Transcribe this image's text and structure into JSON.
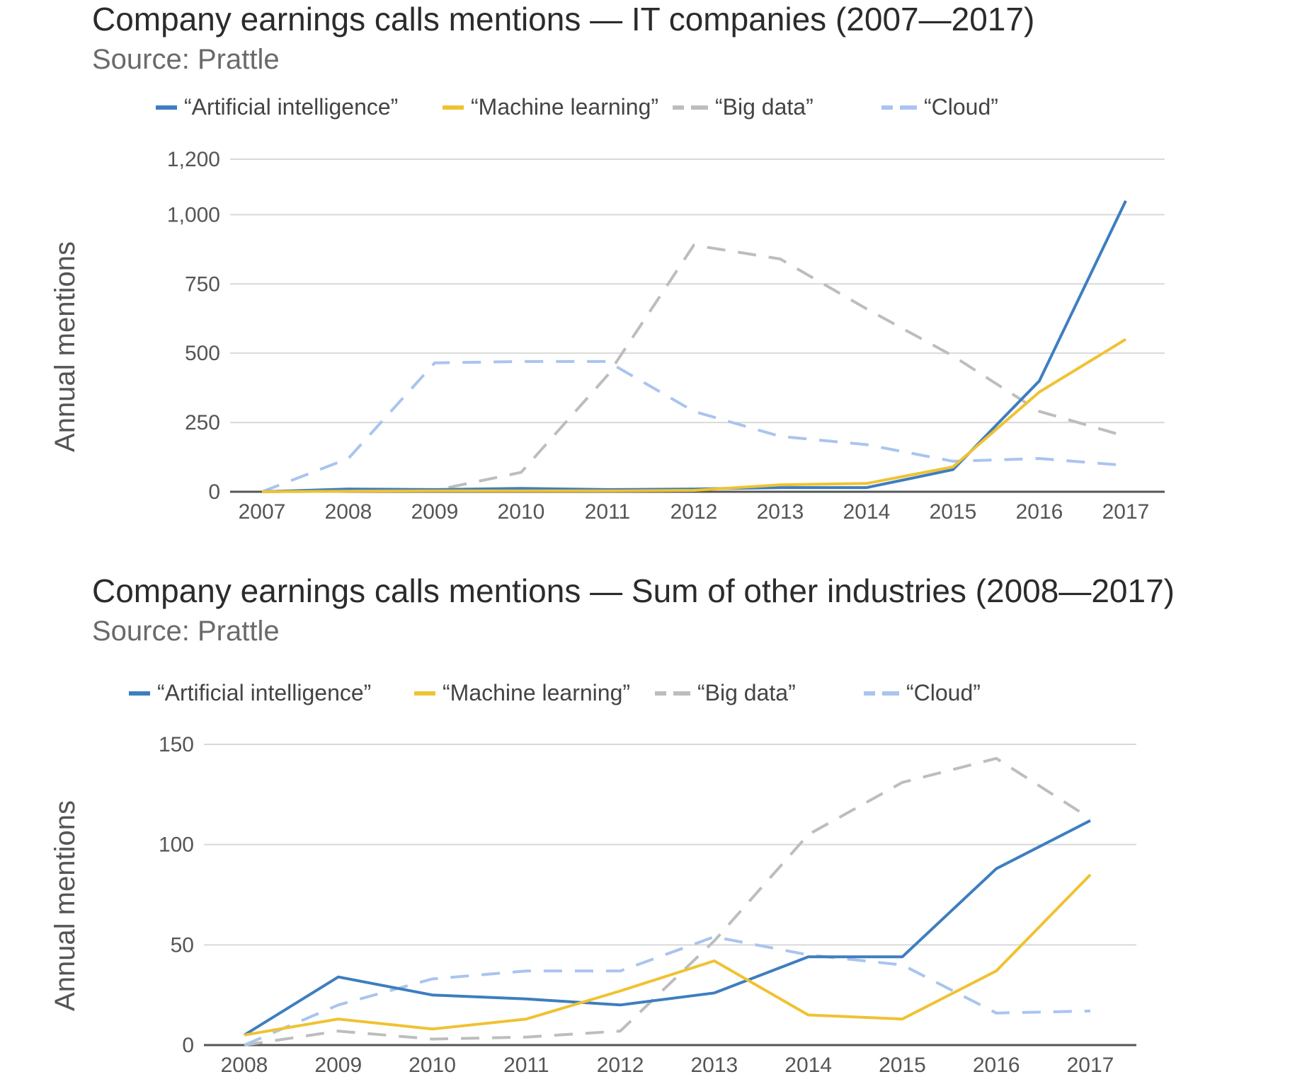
{
  "charts": [
    {
      "title": "Company earnings calls mentions — IT companies (2007—2017)",
      "source": "Source: Prattle",
      "ylabel": "Annual mentions"
    },
    {
      "title": "Company earnings calls mentions — Sum of other industries (2008—2017)",
      "source": "Source: Prattle",
      "ylabel": "Annual mentions"
    }
  ],
  "chart_data": [
    {
      "type": "line",
      "title": "Company earnings calls mentions — IT companies (2007—2017)",
      "subtitle": "Source: Prattle",
      "xlabel": "",
      "ylabel": "Annual mentions",
      "x": [
        "2007",
        "2008",
        "2009",
        "2010",
        "2011",
        "2012",
        "2013",
        "2014",
        "2015",
        "2016",
        "2017"
      ],
      "yticks": [
        0,
        250,
        500,
        750,
        1000,
        1200
      ],
      "ytick_labels": [
        "0",
        "250",
        "500",
        "750",
        "1,000",
        "1,200"
      ],
      "ylim": [
        0,
        1200
      ],
      "grid": true,
      "legend": "top",
      "series": [
        {
          "name": "“Artificial intelligence”",
          "color": "#3d7ebf",
          "dash": false,
          "values": [
            0,
            10,
            8,
            12,
            8,
            10,
            15,
            15,
            80,
            400,
            1050
          ]
        },
        {
          "name": "“Machine learning”",
          "color": "#f0c232",
          "dash": false,
          "values": [
            0,
            2,
            3,
            3,
            3,
            5,
            25,
            30,
            90,
            360,
            550
          ]
        },
        {
          "name": "“Big data”",
          "color": "#bdbdbd",
          "dash": true,
          "values": [
            0,
            2,
            5,
            70,
            420,
            890,
            840,
            660,
            490,
            290,
            200
          ]
        },
        {
          "name": "“Cloud”",
          "color": "#a9c4ee",
          "dash": true,
          "values": [
            0,
            120,
            465,
            470,
            470,
            290,
            200,
            170,
            110,
            120,
            95
          ]
        }
      ]
    },
    {
      "type": "line",
      "title": "Company earnings calls mentions — Sum of other industries (2008—2017)",
      "subtitle": "Source: Prattle",
      "xlabel": "",
      "ylabel": "Annual mentions",
      "x": [
        "2008",
        "2009",
        "2010",
        "2011",
        "2012",
        "2013",
        "2014",
        "2015",
        "2016",
        "2017"
      ],
      "yticks": [
        0,
        50,
        100,
        150
      ],
      "ytick_labels": [
        "0",
        "50",
        "100",
        "150"
      ],
      "ylim": [
        0,
        150
      ],
      "grid": true,
      "legend": "top",
      "series": [
        {
          "name": "“Artificial intelligence”",
          "color": "#3d7ebf",
          "dash": false,
          "values": [
            5,
            34,
            25,
            23,
            20,
            26,
            44,
            44,
            88,
            112
          ]
        },
        {
          "name": "“Machine learning”",
          "color": "#f0c232",
          "dash": false,
          "values": [
            5,
            13,
            8,
            13,
            27,
            42,
            15,
            13,
            37,
            85
          ]
        },
        {
          "name": "“Big data”",
          "color": "#bdbdbd",
          "dash": true,
          "values": [
            0,
            7,
            3,
            4,
            7,
            52,
            105,
            131,
            143,
            113
          ]
        },
        {
          "name": "“Cloud”",
          "color": "#a9c4ee",
          "dash": true,
          "values": [
            0,
            20,
            33,
            37,
            37,
            54,
            45,
            40,
            16,
            17
          ]
        }
      ]
    }
  ]
}
